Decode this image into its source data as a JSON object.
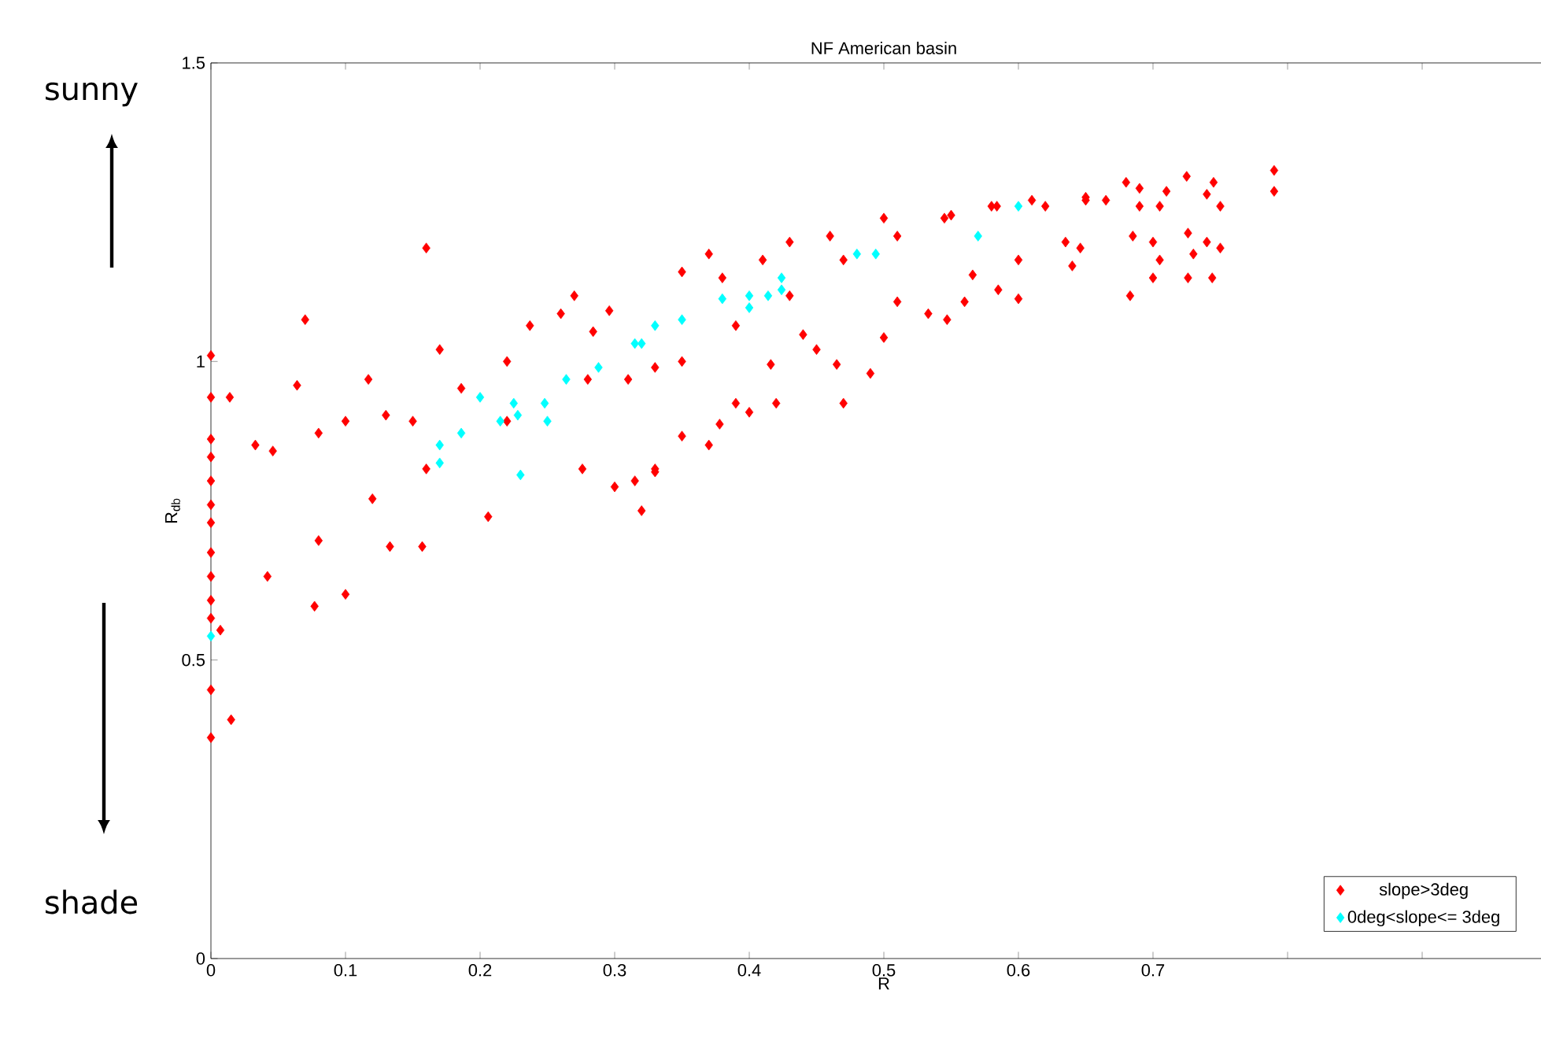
{
  "chart_data": {
    "type": "scatter",
    "title": "NF American basin",
    "xlabel": "R",
    "ylabel": "R$_{db}$",
    "annotations": [
      "sunny",
      "shade"
    ],
    "xlim": [
      0,
      1
    ],
    "ylim": [
      0,
      1.5
    ],
    "xticks": [
      0,
      0.1,
      0.2,
      0.3,
      0.4,
      0.5,
      0.6,
      0.7,
      {
        "value": 0.8,
        "label": null
      },
      {
        "value": 0.9,
        "label": null
      }
    ],
    "yticks": [
      0,
      0.5,
      1,
      1.5
    ],
    "marker": "diamond",
    "legend": "bottom right",
    "grid": false,
    "series": [
      {
        "name": "slope>3deg",
        "color": "#ff0000",
        "x": [
          0,
          0,
          0,
          0,
          0,
          0,
          0,
          0,
          0,
          0,
          0,
          0,
          0,
          0.014,
          0.015,
          0.16,
          0.07,
          0.17,
          0.064,
          0.117,
          0.27,
          0.007,
          0.042,
          0.08,
          0.12,
          0.16,
          0.22,
          0.28,
          0.33,
          0.077,
          0.1,
          0.133,
          0.157,
          0.206,
          0.276,
          0.3,
          0.32,
          0.33,
          0.033,
          0.046,
          0.08,
          0.1,
          0.13,
          0.15,
          0.186,
          0.22,
          0.237,
          0.26,
          0.296,
          0.284,
          0.31,
          0.35,
          0.39,
          0.43,
          0.47,
          0.51,
          0.545,
          0.584,
          0.62,
          0.65,
          0.37,
          0.35,
          0.38,
          0.41,
          0.43,
          0.46,
          0.5,
          0.55,
          0.58,
          0.61,
          0.65,
          0.68,
          0.725,
          0.745,
          0.79,
          0.79,
          0.69,
          0.71,
          0.74,
          0.69,
          0.705,
          0.75,
          0.685,
          0.7,
          0.705,
          0.7,
          0.683,
          0.726,
          0.74,
          0.75,
          0.73,
          0.726,
          0.744,
          0.665,
          0.64,
          0.635,
          0.646,
          0.6,
          0.6,
          0.585,
          0.56,
          0.547,
          0.533,
          0.566,
          0.5,
          0.49,
          0.51,
          0.465,
          0.47,
          0.45,
          0.44,
          0.42,
          0.416,
          0.4,
          0.39,
          0.378,
          0.35,
          0.37,
          0.33,
          0.315
        ],
        "values": [
          1.01,
          0.94,
          0.87,
          0.84,
          0.8,
          0.76,
          0.73,
          0.68,
          0.64,
          0.6,
          0.57,
          0.45,
          0.37,
          0.94,
          0.4,
          1.19,
          1.07,
          1.02,
          0.96,
          0.97,
          1.11,
          0.55,
          0.64,
          0.7,
          0.77,
          0.82,
          0.9,
          0.97,
          0.99,
          0.59,
          0.61,
          0.69,
          0.69,
          0.74,
          0.82,
          0.79,
          0.75,
          0.82,
          0.86,
          0.85,
          0.88,
          0.9,
          0.91,
          0.9,
          0.955,
          1.0,
          1.06,
          1.08,
          1.085,
          1.05,
          0.97,
          1.0,
          1.06,
          1.11,
          1.17,
          1.21,
          1.24,
          1.26,
          1.26,
          1.27,
          1.18,
          1.15,
          1.14,
          1.17,
          1.2,
          1.21,
          1.24,
          1.245,
          1.26,
          1.27,
          1.275,
          1.3,
          1.31,
          1.3,
          1.32,
          1.285,
          1.29,
          1.285,
          1.28,
          1.26,
          1.26,
          1.26,
          1.21,
          1.2,
          1.17,
          1.14,
          1.11,
          1.215,
          1.2,
          1.19,
          1.18,
          1.14,
          1.14,
          1.27,
          1.16,
          1.2,
          1.19,
          1.17,
          1.105,
          1.12,
          1.1,
          1.07,
          1.08,
          1.145,
          1.04,
          0.98,
          1.1,
          0.995,
          0.93,
          1.02,
          1.045,
          0.93,
          0.995,
          0.915,
          0.93,
          0.895,
          0.875,
          0.86,
          0.815,
          0.8
        ]
      },
      {
        "name": "0deg<slope<= 3deg",
        "color": "#00ffff",
        "x": [
          0,
          0.17,
          0.17,
          0.186,
          0.2,
          0.215,
          0.225,
          0.228,
          0.248,
          0.25,
          0.23,
          0.264,
          0.288,
          0.315,
          0.33,
          0.32,
          0.35,
          0.38,
          0.4,
          0.4,
          0.414,
          0.424,
          0.424,
          0.48,
          0.494,
          0.57,
          0.6
        ],
        "values": [
          0.54,
          0.86,
          0.83,
          0.88,
          0.94,
          0.9,
          0.93,
          0.91,
          0.93,
          0.9,
          0.81,
          0.97,
          0.99,
          1.03,
          1.06,
          1.03,
          1.07,
          1.105,
          1.11,
          1.09,
          1.11,
          1.14,
          1.12,
          1.18,
          1.18,
          1.21,
          1.26
        ]
      }
    ]
  }
}
